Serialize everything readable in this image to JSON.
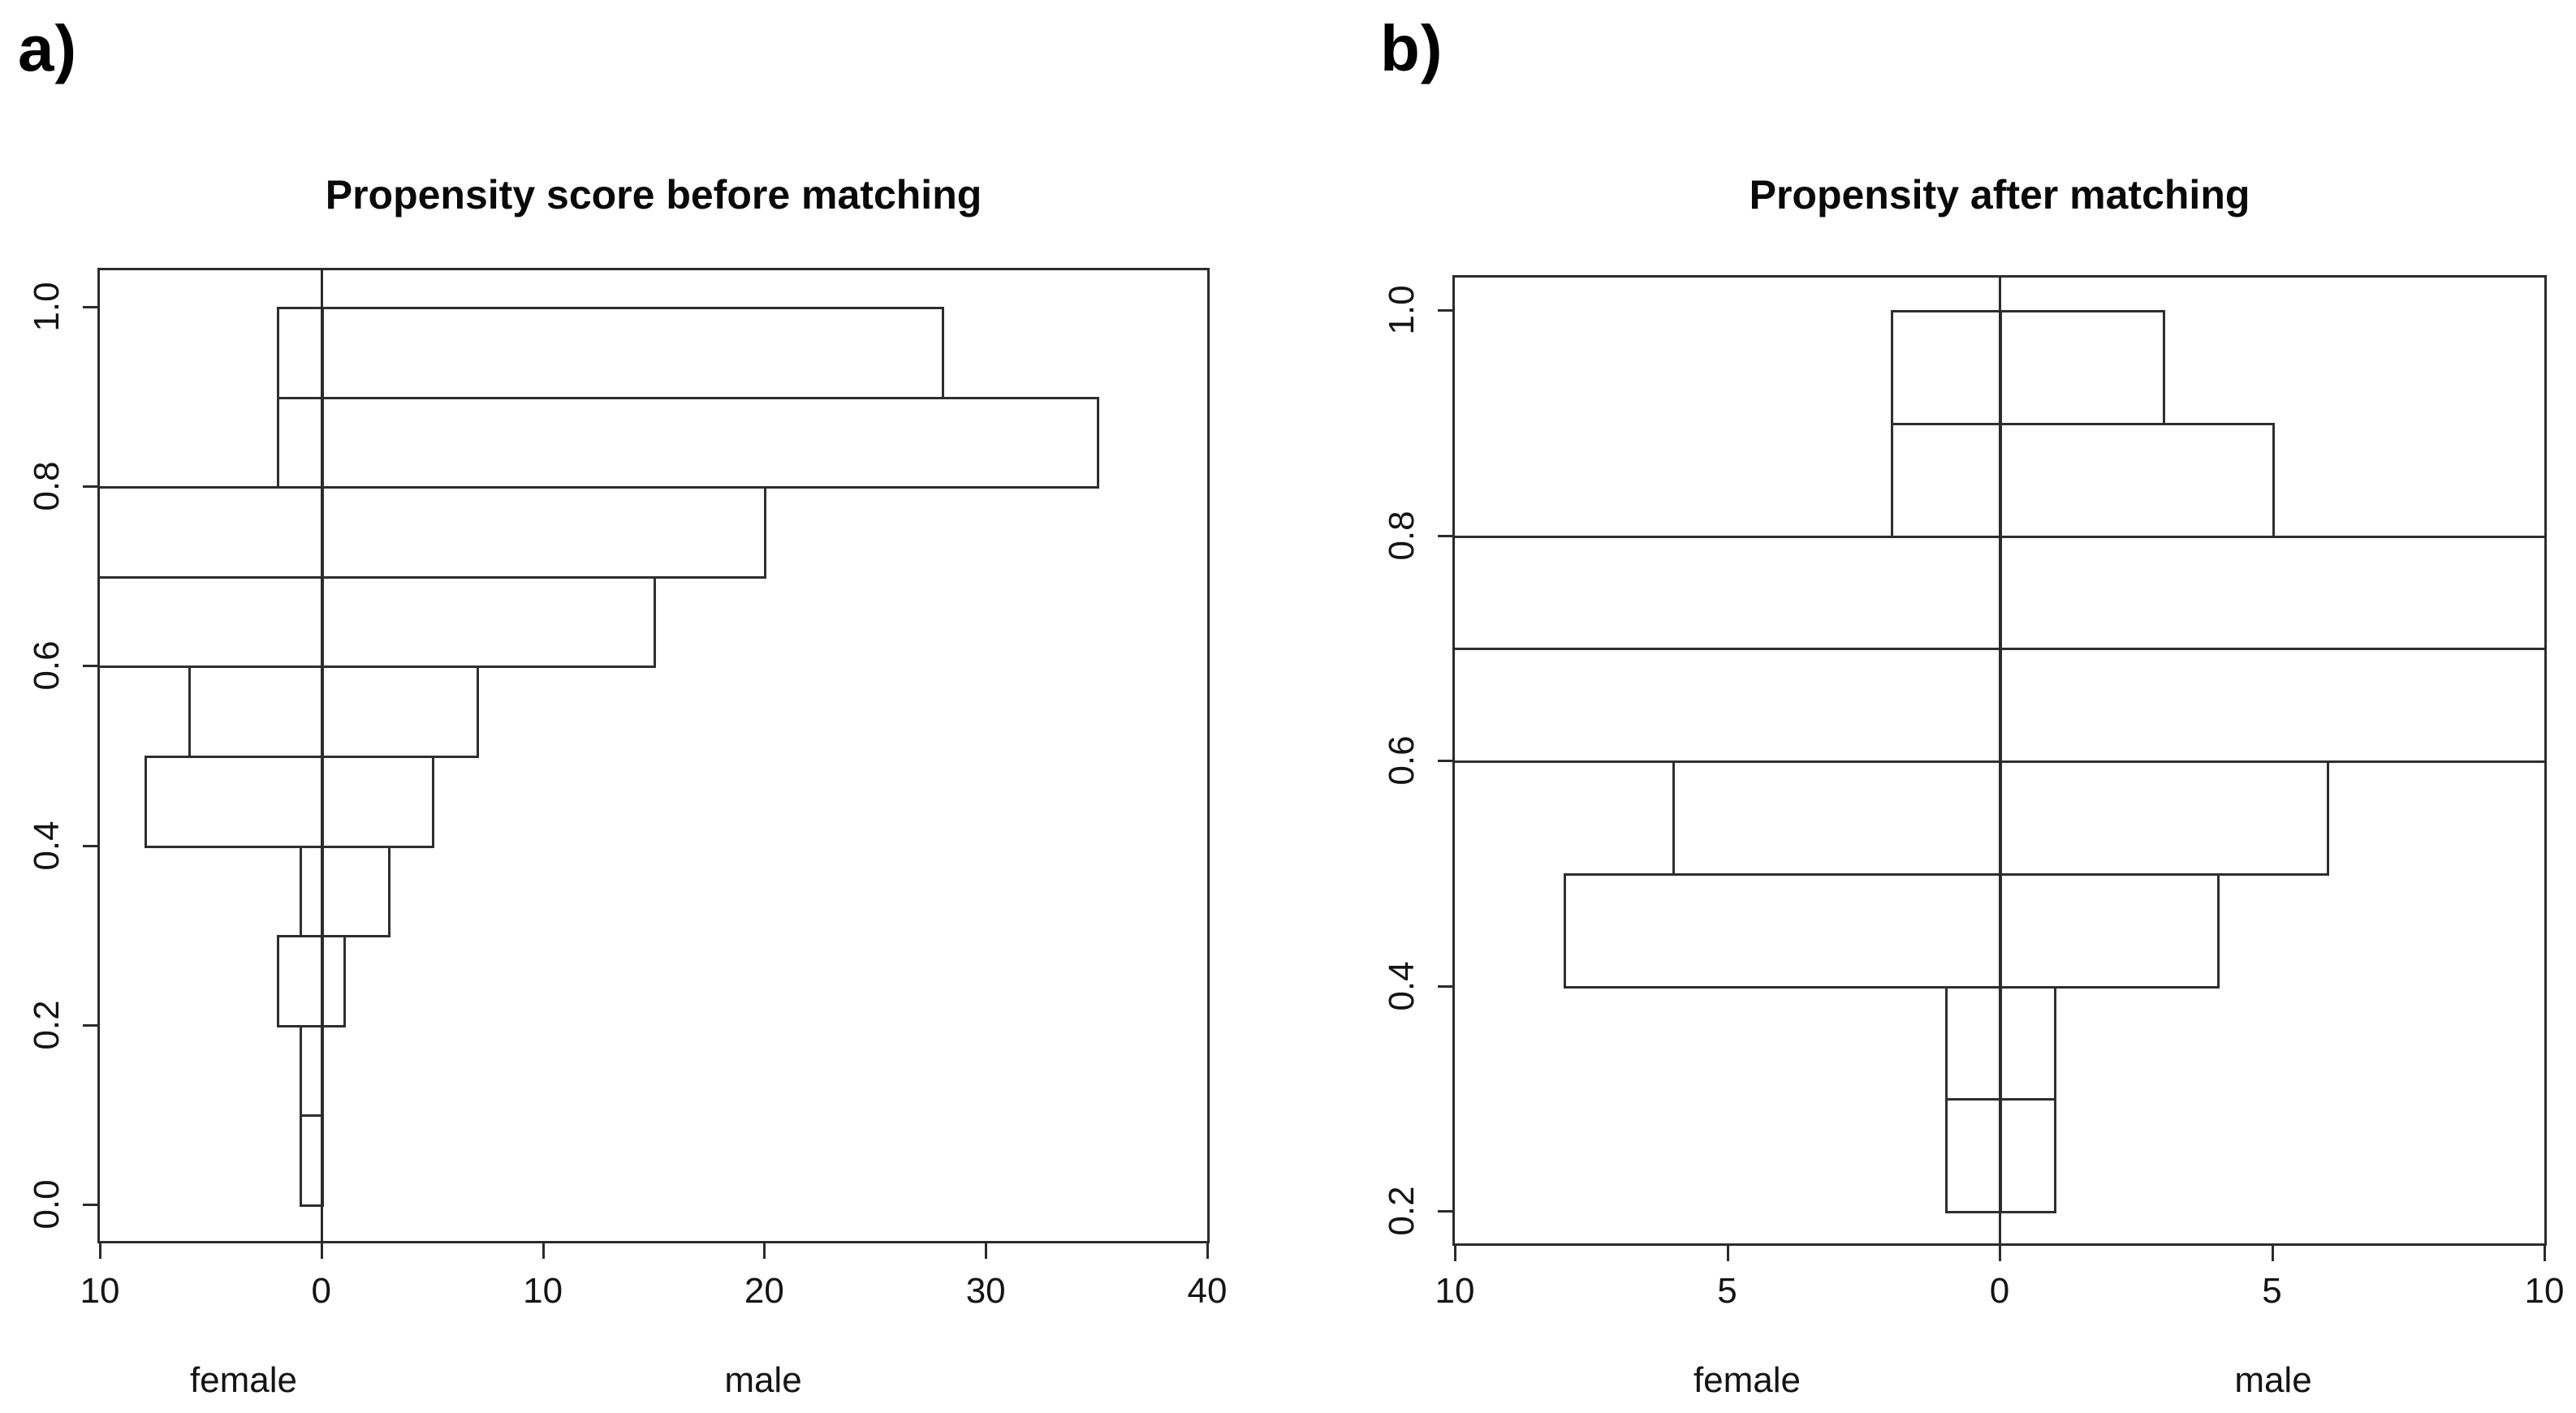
{
  "figure": {
    "background_color": "#ffffff",
    "line_color": "#2b2b2b",
    "text_color": "#111111"
  },
  "chart_data": [
    {
      "type": "bar",
      "variant": "back-to-back horizontal histogram (population pyramid)",
      "panel_label": "a)",
      "title": "Propensity score before matching",
      "bin_width": 0.1,
      "bin_edges": [
        0.0,
        0.1,
        0.2,
        0.3,
        0.4,
        0.5,
        0.6,
        0.7,
        0.8,
        0.9,
        1.0
      ],
      "series": [
        {
          "name": "female",
          "side": "left",
          "values": [
            1,
            1,
            2,
            1,
            8,
            6,
            10,
            10,
            2,
            2
          ]
        },
        {
          "name": "male",
          "side": "right",
          "values": [
            0,
            0,
            1,
            3,
            5,
            7,
            15,
            20,
            35,
            28
          ]
        }
      ],
      "clipped_bins": {
        "female": [
          0.6,
          0.7
        ],
        "male": []
      },
      "x_axis": {
        "label_left": "female",
        "label_right": "male",
        "tick_labels": [
          "10",
          "0",
          "10",
          "20",
          "30",
          "40"
        ],
        "tick_values": [
          -10,
          0,
          10,
          20,
          30,
          40
        ],
        "lim": [
          -10,
          40
        ]
      },
      "y_axis": {
        "tick_labels": [
          "0.0",
          "0.2",
          "0.4",
          "0.6",
          "0.8",
          "1.0"
        ],
        "tick_values": [
          0.0,
          0.2,
          0.4,
          0.6,
          0.8,
          1.0
        ],
        "lim": [
          0.0,
          1.0
        ]
      },
      "grid": false,
      "legend": "none"
    },
    {
      "type": "bar",
      "variant": "back-to-back horizontal histogram (population pyramid)",
      "panel_label": "b)",
      "title": "Propensity after matching",
      "bin_width": 0.1,
      "bin_edges": [
        0.2,
        0.3,
        0.4,
        0.5,
        0.6,
        0.7,
        0.8,
        0.9,
        1.0
      ],
      "series": [
        {
          "name": "female",
          "side": "left",
          "values": [
            1,
            1,
            8,
            6,
            10,
            10,
            2,
            2
          ]
        },
        {
          "name": "male",
          "side": "right",
          "values": [
            1,
            1,
            4,
            6,
            10,
            10,
            5,
            3
          ]
        }
      ],
      "clipped_bins": {
        "female": [
          0.6,
          0.7
        ],
        "male": [
          0.6,
          0.7
        ]
      },
      "x_axis": {
        "label_left": "female",
        "label_right": "male",
        "tick_labels": [
          "10",
          "5",
          "0",
          "5",
          "10"
        ],
        "tick_values": [
          -10,
          -5,
          0,
          5,
          10
        ],
        "lim": [
          -10,
          10
        ]
      },
      "y_axis": {
        "tick_labels": [
          "0.2",
          "0.4",
          "0.6",
          "0.8",
          "1.0"
        ],
        "tick_values": [
          0.2,
          0.4,
          0.6,
          0.8,
          1.0
        ],
        "lim": [
          0.2,
          1.0
        ]
      },
      "grid": false,
      "legend": "none"
    }
  ]
}
